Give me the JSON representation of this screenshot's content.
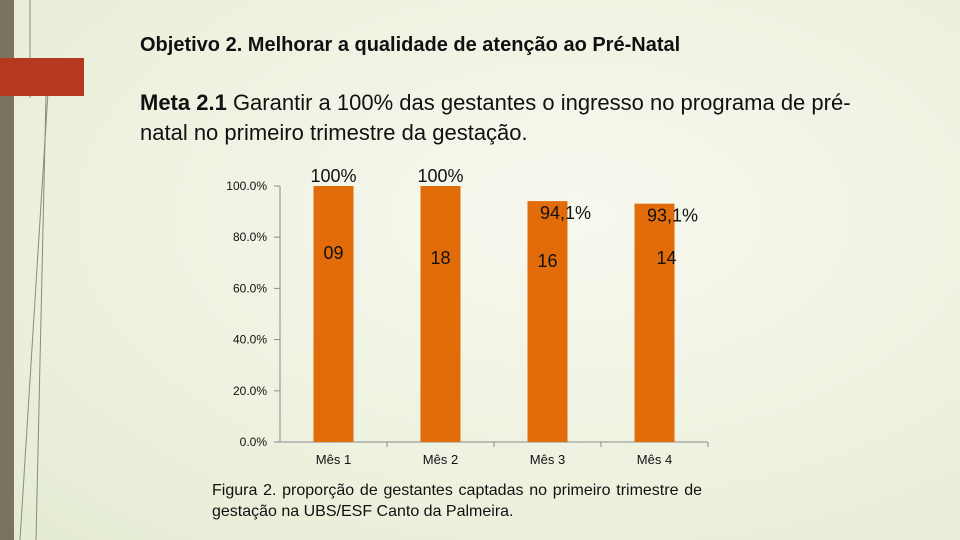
{
  "slide": {
    "title": "Objetivo 2. Melhorar a qualidade de atenção ao Pré-Natal",
    "subtitle_bold": "Meta 2.1",
    "subtitle_rest": " Garantir a 100% das gestantes o ingresso no programa de pré-natal no primeiro trimestre da gestação.",
    "caption": "Figura 2. proporção de gestantes captadas no primeiro trimestre de gestação na UBS/ESF Canto da Palmeira.",
    "colors": {
      "bar": "#e36c0a",
      "accent": "#b5391f",
      "sidebar": "#7a7360"
    }
  },
  "chart_data": {
    "type": "bar",
    "categories": [
      "Mês 1",
      "Mês 2",
      "Mês 3",
      "Mês 4"
    ],
    "values": [
      100,
      100,
      94.1,
      93.1
    ],
    "percent_labels": [
      "100%",
      "100%",
      "94,1%",
      "93,1%"
    ],
    "count_labels": [
      "09",
      "18",
      "16",
      "14"
    ],
    "y_ticks": [
      "0.0%",
      "20.0%",
      "40.0%",
      "60.0%",
      "80.0%",
      "100.0%"
    ],
    "ylim": [
      0,
      100
    ],
    "grid": false,
    "legend": "none"
  }
}
